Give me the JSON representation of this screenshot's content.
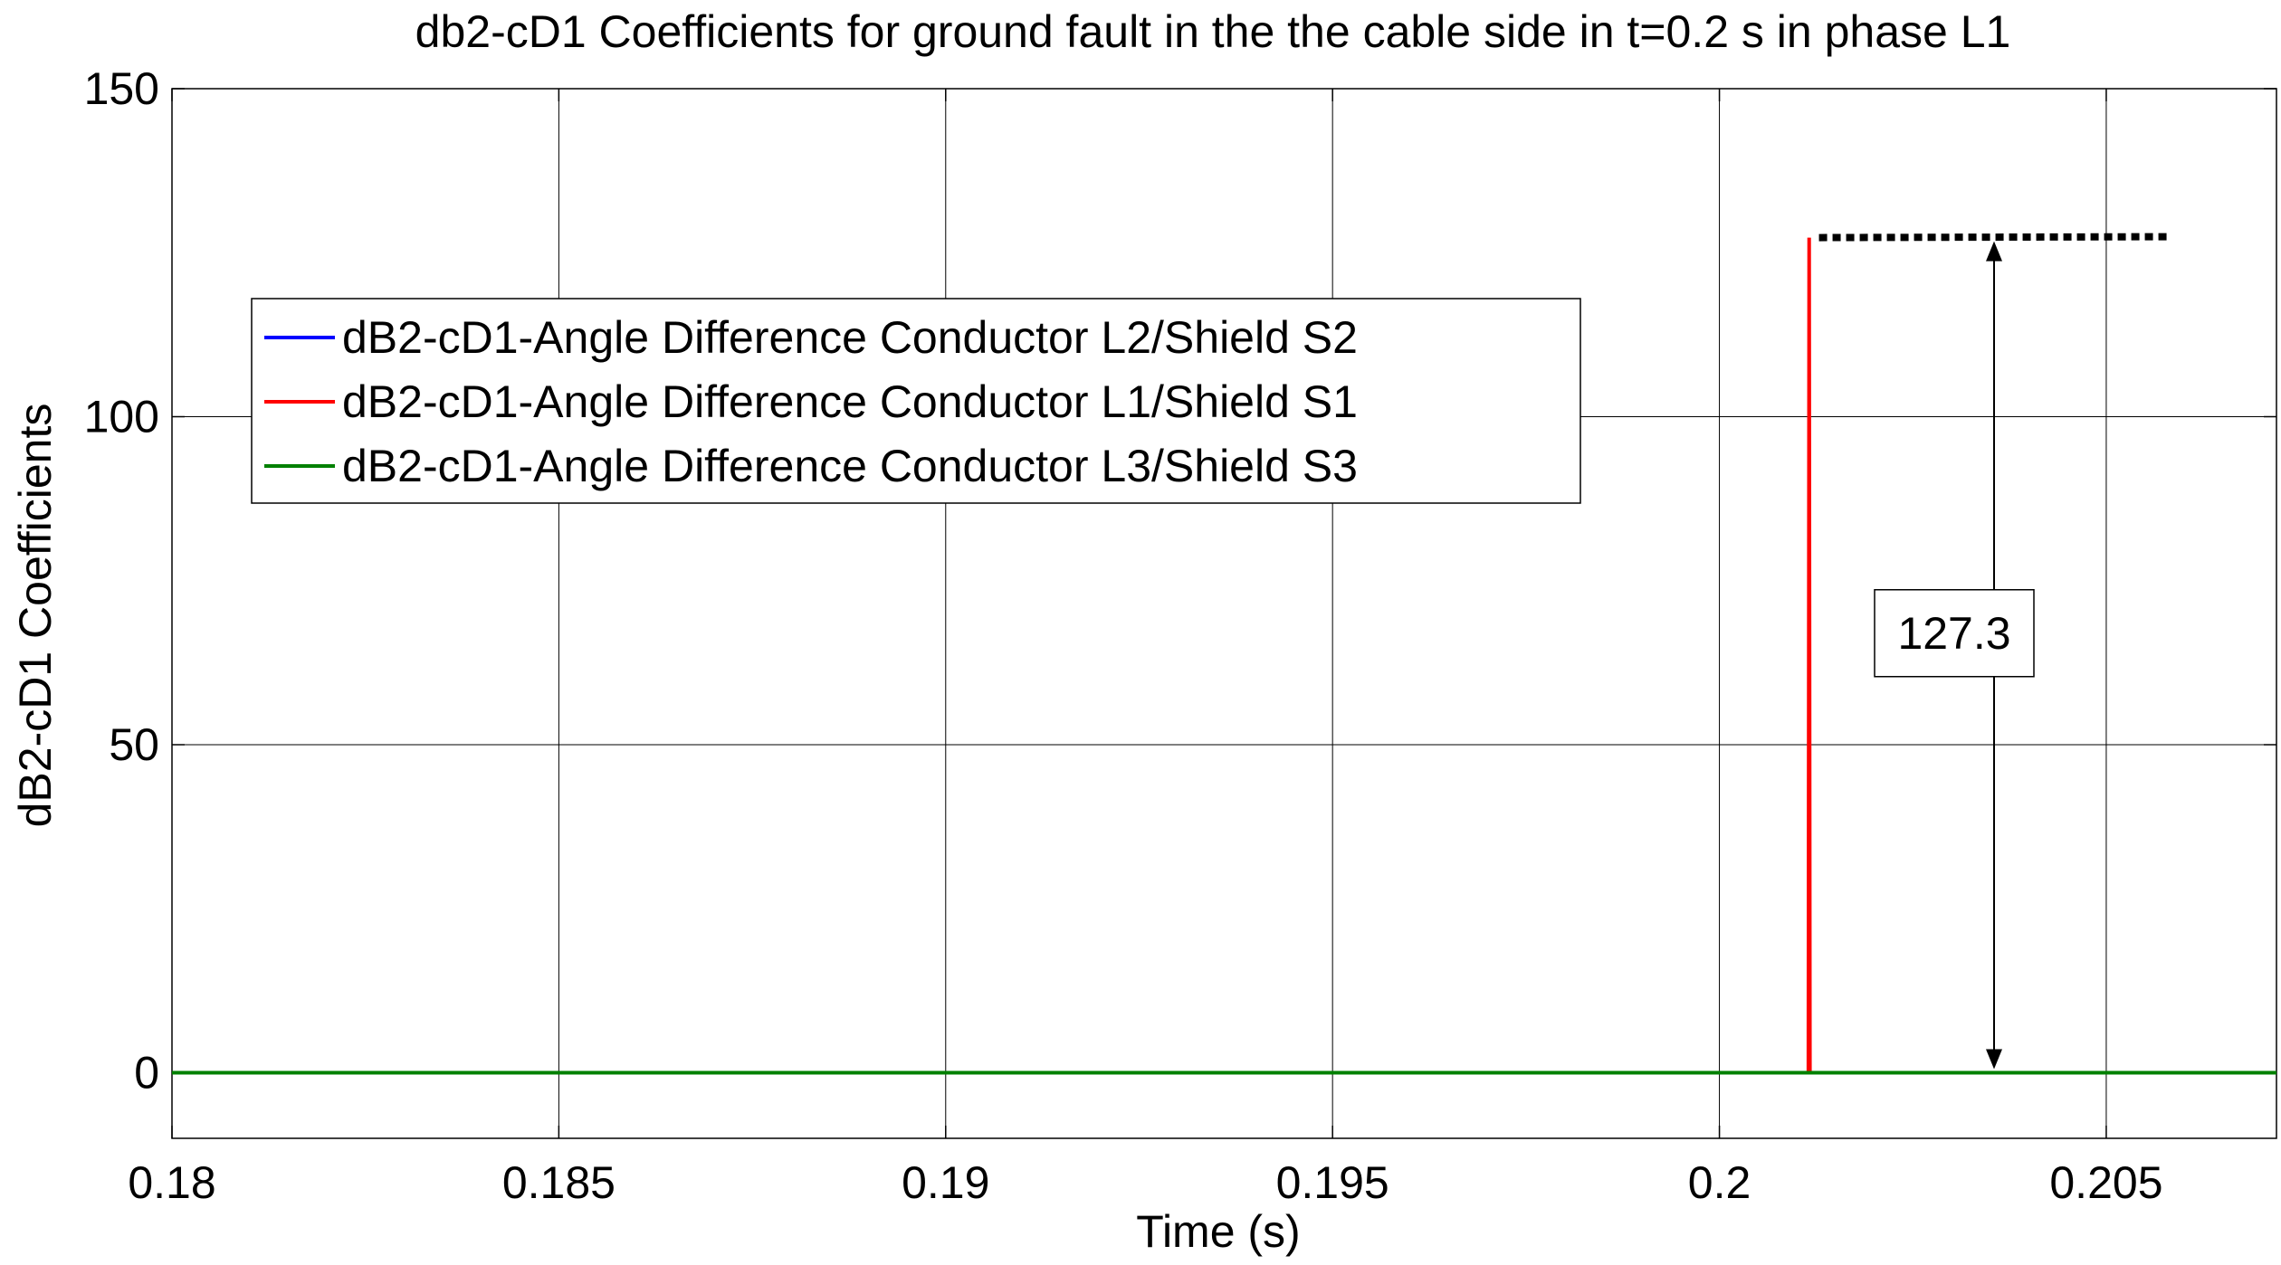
{
  "chart_data": {
    "type": "line",
    "title": "db2-cD1 Coefficients for ground fault in the the cable side in t=0.2 s in phase L1",
    "xlabel": "Time (s)",
    "ylabel": "dB2-cD1 Coefficients",
    "xlim": [
      0.18,
      0.2072
    ],
    "ylim": [
      -10,
      150
    ],
    "xticks": [
      0.18,
      0.185,
      0.19,
      0.195,
      0.2,
      0.205
    ],
    "xtick_labels": [
      "0.18",
      "0.185",
      "0.19",
      "0.195",
      "0.2",
      "0.205"
    ],
    "yticks": [
      0,
      50,
      100,
      150
    ],
    "ytick_labels": [
      "0",
      "50",
      "100",
      "150"
    ],
    "grid": true,
    "legend_position": "upper-left",
    "series": [
      {
        "name": "dB2-cD1-Angle Difference Conductor L2/Shield S2",
        "color": "#0000ff",
        "x": [
          0.18,
          0.2072
        ],
        "y": [
          0,
          0
        ]
      },
      {
        "name": "dB2-cD1-Angle Difference Conductor L1/Shield S1",
        "color": "#ff0000",
        "x": [
          0.18,
          0.20115,
          0.20116,
          0.20117,
          0.2072
        ],
        "y": [
          0,
          0,
          127.3,
          0,
          0
        ]
      },
      {
        "name": "dB2-cD1-Angle Difference Conductor L3/Shield S3",
        "color": "#008000",
        "x": [
          0.18,
          0.2072
        ],
        "y": [
          0,
          0
        ]
      }
    ],
    "annotations": {
      "peak_label": "127.3",
      "peak_value": 127.3,
      "dotted_line": {
        "x_start": 0.20117,
        "x_end": 0.2058,
        "y": 127.3
      },
      "arrow": {
        "x": 0.20355,
        "y_from": 0,
        "y_to": 127.3
      },
      "label_anchor": {
        "x": 0.20355,
        "y": 67
      }
    }
  }
}
